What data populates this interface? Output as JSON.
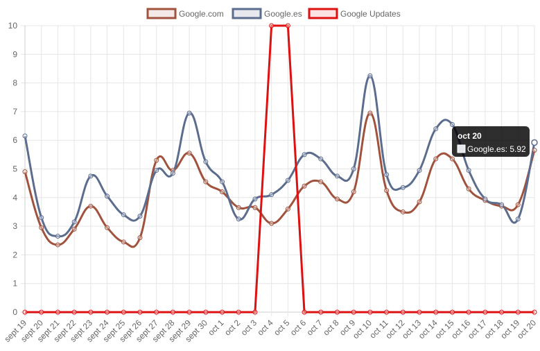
{
  "chart_data": {
    "type": "line",
    "categories": [
      "sept 19",
      "sept 20",
      "sept 21",
      "sept 22",
      "sept 23",
      "sept 24",
      "sept 25",
      "sept 26",
      "sept 27",
      "sept 28",
      "sept 29",
      "sept 30",
      "oct 1",
      "oct 2",
      "oct 3",
      "oct 4",
      "oct 5",
      "oct 6",
      "oct 7",
      "oct 8",
      "oct 9",
      "oct 10",
      "oct 11",
      "oct 12",
      "oct 13",
      "oct 14",
      "oct 15",
      "oct 16",
      "oct 17",
      "oct 18",
      "oct 19",
      "oct 20"
    ],
    "ylim": [
      0,
      10
    ],
    "yticks": [
      "0",
      "1",
      "2",
      "3",
      "4",
      "5",
      "6",
      "7",
      "8",
      "9",
      "10"
    ],
    "grid": true,
    "legend_position": "top-center",
    "series": [
      {
        "name": "Google.com",
        "color": "#a0523d",
        "smooth": true,
        "values": [
          4.9,
          2.95,
          2.35,
          2.9,
          3.7,
          2.95,
          2.45,
          2.6,
          5.3,
          4.95,
          5.55,
          4.55,
          4.2,
          3.65,
          3.65,
          3.1,
          3.6,
          4.4,
          4.55,
          3.95,
          4.2,
          6.95,
          4.25,
          3.5,
          3.85,
          5.35,
          5.35,
          4.3,
          3.9,
          3.7,
          3.75,
          5.65
        ]
      },
      {
        "name": "Google.es",
        "color": "#5b6c8f",
        "smooth": true,
        "values": [
          6.15,
          3.3,
          2.65,
          3.15,
          4.75,
          4.05,
          3.4,
          3.35,
          4.95,
          4.85,
          6.95,
          5.25,
          4.55,
          3.25,
          3.95,
          4.1,
          4.6,
          5.5,
          5.35,
          4.75,
          5.0,
          8.25,
          4.8,
          4.35,
          4.95,
          6.4,
          6.55,
          4.95,
          3.95,
          3.75,
          3.25,
          5.92
        ]
      },
      {
        "name": "Google Updates",
        "color": "#dd1111",
        "smooth": false,
        "values": [
          0,
          0,
          0,
          0,
          0,
          0,
          0,
          0,
          0,
          0,
          0,
          0,
          0,
          0,
          0,
          10,
          10,
          0,
          0,
          0,
          0,
          0,
          0,
          0,
          0,
          0,
          0,
          0,
          0,
          0,
          0,
          0
        ]
      }
    ],
    "tooltip": {
      "title": "oct 20",
      "label": "Google.es: 5.92"
    }
  }
}
